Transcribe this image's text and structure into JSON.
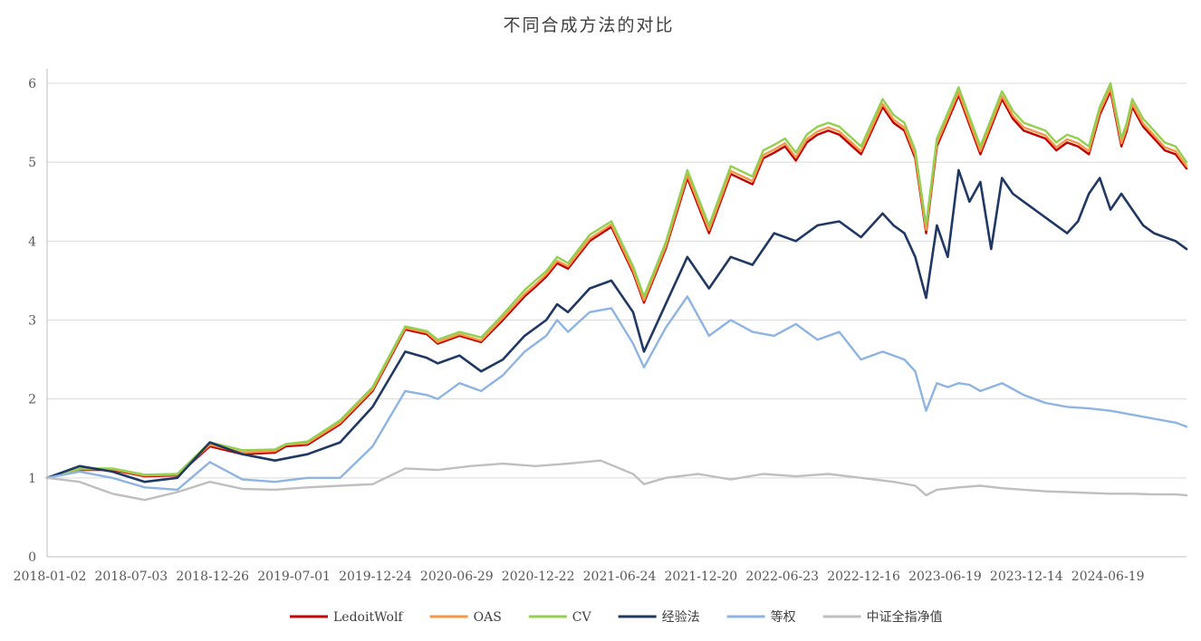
{
  "chart_data": {
    "type": "line",
    "title": "不同合成方法的对比",
    "xlabel": "",
    "ylabel": "",
    "ylim": [
      0,
      6
    ],
    "yticks": [
      0,
      1,
      2,
      3,
      4,
      5,
      6
    ],
    "x_tick_labels": [
      "2018-01-02",
      "2018-07-03",
      "2018-12-26",
      "2019-07-01",
      "2019-12-24",
      "2020-06-29",
      "2020-12-22",
      "2021-06-24",
      "2021-12-20",
      "2022-06-23",
      "2022-12-16",
      "2023-06-19",
      "2023-12-14",
      "2024-06-19"
    ],
    "x_range": [
      0,
      105
    ],
    "grid": true,
    "legend_position": "bottom",
    "series": [
      {
        "name": "LedoitWolf",
        "color": "#c00000",
        "width": 2.4,
        "x": [
          0,
          3,
          6,
          9,
          12,
          15,
          18,
          21,
          22,
          24,
          27,
          30,
          33,
          35,
          36,
          38,
          40,
          42,
          44,
          45,
          46,
          47,
          48,
          50,
          52,
          54,
          55,
          57,
          59,
          61,
          63,
          65,
          66,
          67,
          68,
          69,
          70,
          71,
          72,
          73,
          75,
          77,
          78,
          79,
          80,
          81,
          82,
          84,
          86,
          88,
          89,
          90,
          92,
          93,
          94,
          95,
          96,
          97,
          98,
          99,
          99.5,
          100,
          101,
          102,
          103,
          104,
          105
        ],
        "y": [
          1.0,
          1.1,
          1.1,
          1.02,
          1.03,
          1.4,
          1.3,
          1.32,
          1.4,
          1.42,
          1.68,
          2.1,
          2.88,
          2.82,
          2.7,
          2.8,
          2.72,
          3.0,
          3.3,
          3.42,
          3.55,
          3.72,
          3.65,
          4.0,
          4.18,
          3.6,
          3.22,
          3.9,
          4.8,
          4.1,
          4.85,
          4.72,
          5.05,
          5.12,
          5.2,
          5.02,
          5.25,
          5.35,
          5.4,
          5.35,
          5.1,
          5.7,
          5.5,
          5.4,
          5.05,
          4.1,
          5.2,
          5.85,
          5.1,
          5.8,
          5.55,
          5.4,
          5.3,
          5.15,
          5.25,
          5.2,
          5.1,
          5.6,
          5.9,
          5.2,
          5.4,
          5.7,
          5.45,
          5.3,
          5.15,
          5.1,
          4.92
        ]
      },
      {
        "name": "OAS",
        "color": "#f79646",
        "width": 2.4,
        "x": [
          0,
          3,
          6,
          9,
          12,
          15,
          18,
          21,
          22,
          24,
          27,
          30,
          33,
          35,
          36,
          38,
          40,
          42,
          44,
          45,
          46,
          47,
          48,
          50,
          52,
          54,
          55,
          57,
          59,
          61,
          63,
          65,
          66,
          67,
          68,
          69,
          70,
          71,
          72,
          73,
          75,
          77,
          78,
          79,
          80,
          81,
          82,
          84,
          86,
          88,
          89,
          90,
          92,
          93,
          94,
          95,
          96,
          97,
          98,
          99,
          99.5,
          100,
          101,
          102,
          103,
          104,
          105
        ],
        "y": [
          1.0,
          1.11,
          1.11,
          1.03,
          1.04,
          1.42,
          1.32,
          1.34,
          1.42,
          1.44,
          1.7,
          2.12,
          2.9,
          2.84,
          2.72,
          2.82,
          2.74,
          3.03,
          3.33,
          3.45,
          3.58,
          3.75,
          3.68,
          4.03,
          4.21,
          3.63,
          3.25,
          3.93,
          4.84,
          4.14,
          4.89,
          4.76,
          5.09,
          5.16,
          5.24,
          5.06,
          5.29,
          5.39,
          5.44,
          5.39,
          5.14,
          5.74,
          5.54,
          5.44,
          5.09,
          4.14,
          5.24,
          5.89,
          5.14,
          5.84,
          5.59,
          5.44,
          5.34,
          5.19,
          5.29,
          5.24,
          5.14,
          5.64,
          5.94,
          5.24,
          5.44,
          5.74,
          5.49,
          5.34,
          5.19,
          5.14,
          4.95
        ]
      },
      {
        "name": "CV",
        "color": "#92d050",
        "width": 2.4,
        "x": [
          0,
          3,
          6,
          9,
          12,
          15,
          18,
          21,
          22,
          24,
          27,
          30,
          33,
          35,
          36,
          38,
          40,
          42,
          44,
          45,
          46,
          47,
          48,
          50,
          52,
          54,
          55,
          57,
          59,
          61,
          63,
          65,
          66,
          67,
          68,
          69,
          70,
          71,
          72,
          73,
          75,
          77,
          78,
          79,
          80,
          81,
          82,
          84,
          86,
          88,
          89,
          90,
          92,
          93,
          94,
          95,
          96,
          97,
          98,
          99,
          99.5,
          100,
          101,
          102,
          103,
          104,
          105
        ],
        "y": [
          1.0,
          1.12,
          1.12,
          1.04,
          1.05,
          1.45,
          1.35,
          1.36,
          1.43,
          1.46,
          1.73,
          2.15,
          2.92,
          2.86,
          2.75,
          2.85,
          2.78,
          3.07,
          3.38,
          3.5,
          3.62,
          3.8,
          3.72,
          4.08,
          4.25,
          3.68,
          3.3,
          3.98,
          4.9,
          4.2,
          4.95,
          4.82,
          5.15,
          5.22,
          5.3,
          5.12,
          5.35,
          5.45,
          5.5,
          5.45,
          5.2,
          5.8,
          5.6,
          5.5,
          5.15,
          4.2,
          5.3,
          5.95,
          5.2,
          5.9,
          5.65,
          5.5,
          5.4,
          5.25,
          5.35,
          5.3,
          5.2,
          5.7,
          6.0,
          5.3,
          5.5,
          5.8,
          5.55,
          5.4,
          5.25,
          5.2,
          5.0
        ]
      },
      {
        "name": "经验法",
        "color": "#1f3864",
        "width": 2.6,
        "x": [
          0,
          3,
          6,
          9,
          12,
          15,
          18,
          21,
          24,
          27,
          30,
          33,
          35,
          36,
          38,
          40,
          42,
          44,
          46,
          47,
          48,
          50,
          52,
          54,
          55,
          57,
          59,
          61,
          63,
          65,
          67,
          69,
          71,
          73,
          75,
          77,
          78,
          79,
          80,
          81,
          82,
          83,
          84,
          85,
          86,
          87,
          88,
          89,
          90,
          92,
          93,
          94,
          95,
          96,
          97,
          98,
          99,
          100,
          101,
          102,
          103,
          104,
          105
        ],
        "y": [
          1.0,
          1.15,
          1.08,
          0.95,
          1.0,
          1.45,
          1.3,
          1.22,
          1.3,
          1.45,
          1.9,
          2.6,
          2.52,
          2.45,
          2.55,
          2.35,
          2.5,
          2.8,
          3.0,
          3.2,
          3.1,
          3.4,
          3.5,
          3.1,
          2.6,
          3.2,
          3.8,
          3.4,
          3.8,
          3.7,
          4.1,
          4.0,
          4.2,
          4.25,
          4.05,
          4.35,
          4.2,
          4.1,
          3.8,
          3.28,
          4.2,
          3.8,
          4.9,
          4.5,
          4.75,
          3.9,
          4.8,
          4.6,
          4.5,
          4.3,
          4.2,
          4.1,
          4.25,
          4.6,
          4.8,
          4.4,
          4.6,
          4.4,
          4.2,
          4.1,
          4.05,
          4.0,
          3.9
        ]
      },
      {
        "name": "等权",
        "color": "#8db4e2",
        "width": 2.4,
        "x": [
          0,
          3,
          6,
          9,
          12,
          15,
          18,
          21,
          24,
          27,
          30,
          33,
          35,
          36,
          38,
          40,
          42,
          44,
          46,
          47,
          48,
          50,
          52,
          54,
          55,
          57,
          59,
          61,
          63,
          65,
          67,
          69,
          71,
          73,
          75,
          77,
          79,
          80,
          81,
          82,
          83,
          84,
          85,
          86,
          88,
          90,
          92,
          94,
          96,
          98,
          100,
          102,
          104,
          105
        ],
        "y": [
          1.0,
          1.08,
          1.0,
          0.88,
          0.85,
          1.2,
          0.98,
          0.95,
          1.0,
          1.0,
          1.4,
          2.1,
          2.05,
          2.0,
          2.2,
          2.1,
          2.3,
          2.6,
          2.8,
          3.0,
          2.85,
          3.1,
          3.15,
          2.7,
          2.4,
          2.9,
          3.3,
          2.8,
          3.0,
          2.85,
          2.8,
          2.95,
          2.75,
          2.85,
          2.5,
          2.6,
          2.5,
          2.35,
          1.85,
          2.2,
          2.15,
          2.2,
          2.18,
          2.1,
          2.2,
          2.05,
          1.95,
          1.9,
          1.88,
          1.85,
          1.8,
          1.75,
          1.7,
          1.65
        ]
      },
      {
        "name": "中证全指净值",
        "color": "#bfbfbf",
        "width": 2.4,
        "x": [
          0,
          3,
          6,
          9,
          12,
          15,
          18,
          21,
          24,
          27,
          30,
          33,
          36,
          39,
          42,
          45,
          48,
          51,
          54,
          55,
          57,
          60,
          63,
          66,
          69,
          72,
          75,
          78,
          80,
          81,
          82,
          84,
          86,
          88,
          90,
          92,
          94,
          96,
          98,
          100,
          102,
          104,
          105
        ],
        "y": [
          1.0,
          0.95,
          0.8,
          0.72,
          0.82,
          0.95,
          0.86,
          0.85,
          0.88,
          0.9,
          0.92,
          1.12,
          1.1,
          1.15,
          1.18,
          1.15,
          1.18,
          1.22,
          1.05,
          0.92,
          1.0,
          1.05,
          0.98,
          1.05,
          1.02,
          1.05,
          1.0,
          0.95,
          0.9,
          0.78,
          0.85,
          0.88,
          0.9,
          0.87,
          0.85,
          0.83,
          0.82,
          0.81,
          0.8,
          0.8,
          0.79,
          0.79,
          0.78
        ]
      }
    ]
  }
}
